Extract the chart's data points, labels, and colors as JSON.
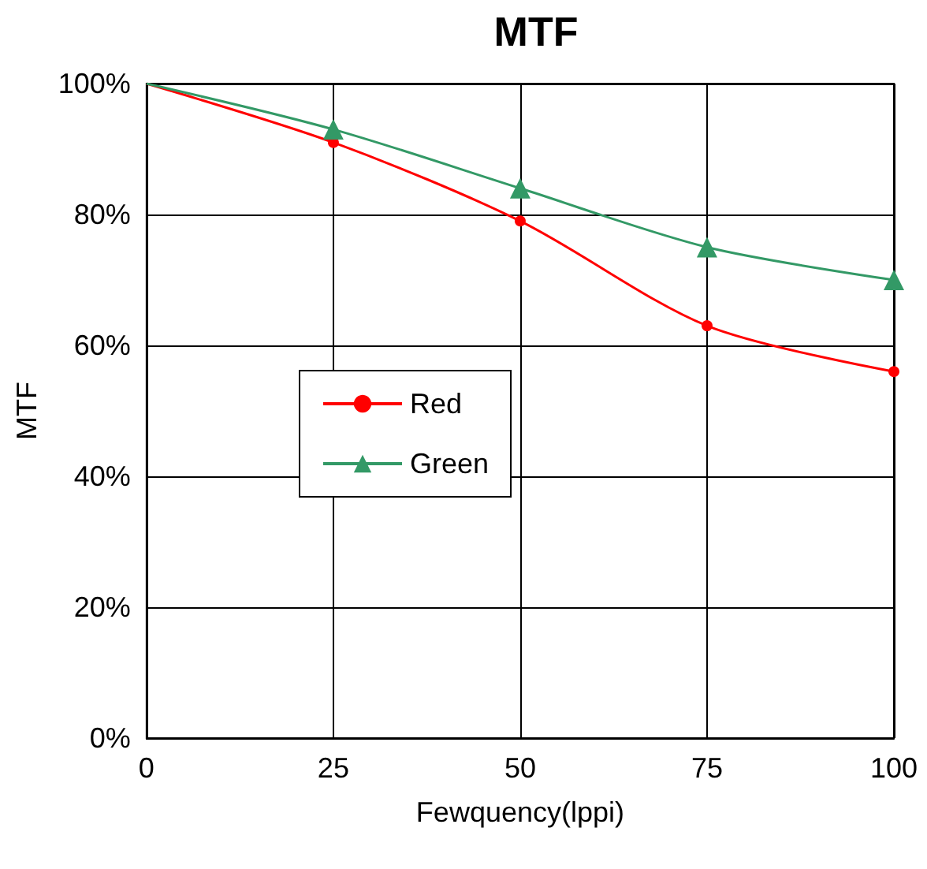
{
  "chart_data": {
    "type": "line",
    "title": "MTF",
    "xlabel": "Fewquency(lppi)",
    "ylabel": "MTF",
    "x": [
      0,
      25,
      50,
      75,
      100
    ],
    "series": [
      {
        "name": "Red",
        "color": "#ff0000",
        "values": [
          100,
          91,
          79,
          63,
          56
        ],
        "marker": "circle"
      },
      {
        "name": "Green",
        "color": "#339966",
        "values": [
          100,
          93,
          84,
          75,
          70
        ],
        "marker": "triangle"
      }
    ],
    "xlim": [
      0,
      100
    ],
    "xticks": [
      0,
      25,
      50,
      75,
      100
    ],
    "ylim": [
      0,
      100
    ],
    "yticks": [
      {
        "value": 0,
        "label": "0%"
      },
      {
        "value": 20,
        "label": "20%"
      },
      {
        "value": 40,
        "label": "40%"
      },
      {
        "value": 60,
        "label": "60%"
      },
      {
        "value": 80,
        "label": "80%"
      },
      {
        "value": 100,
        "label": "100%"
      }
    ],
    "grid": true,
    "legend": "left",
    "line_style": "solid"
  }
}
